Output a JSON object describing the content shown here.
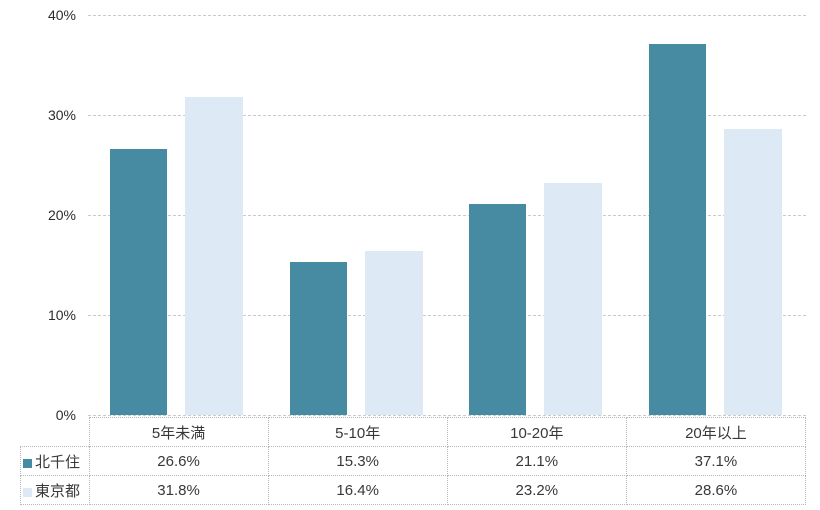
{
  "chart_data": {
    "type": "bar",
    "title": "",
    "xlabel": "",
    "ylabel": "",
    "categories": [
      "5年未満",
      "5-10年",
      "10-20年",
      "20年以上"
    ],
    "series": [
      {
        "name": "北千住",
        "color": "#478ba2",
        "values": [
          26.6,
          15.3,
          21.1,
          37.1
        ],
        "display": [
          "26.6%",
          "15.3%",
          "21.1%",
          "37.1%"
        ]
      },
      {
        "name": "東京都",
        "color": "#dde9f4",
        "values": [
          31.8,
          16.4,
          23.2,
          28.6
        ],
        "display": [
          "31.8%",
          "16.4%",
          "23.2%",
          "28.6%"
        ]
      }
    ],
    "ylim": [
      0,
      40
    ],
    "ytick_labels": [
      "0%",
      "10%",
      "20%",
      "30%",
      "40%"
    ],
    "grid": "horizontal-dashed",
    "legend_position": "data-table-below-chart"
  },
  "colors": {
    "series1": "#478ba2",
    "series2": "#dde9f4",
    "gridline": "#cbcbcb",
    "table_border": "#b7b7b7",
    "text": "#383838",
    "background": "#ffffff"
  }
}
